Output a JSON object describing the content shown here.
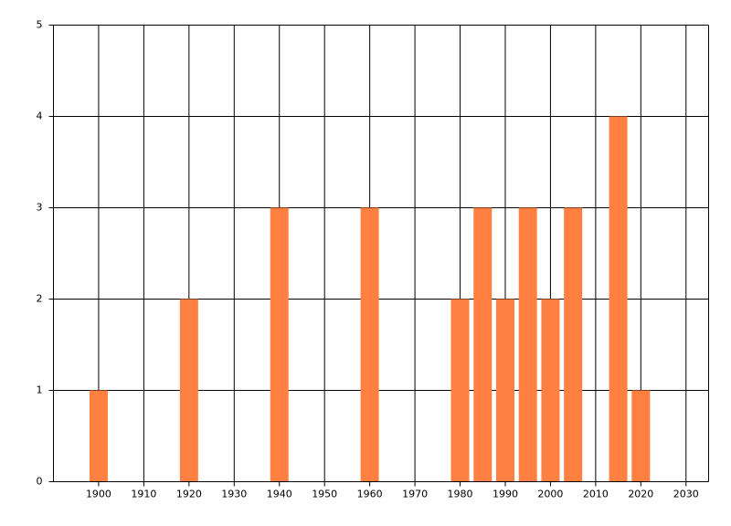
{
  "chart_data": {
    "type": "bar",
    "x": [
      1900,
      1920,
      1940,
      1960,
      1980,
      1985,
      1990,
      1995,
      2000,
      2005,
      2015,
      2020
    ],
    "values": [
      1,
      2,
      3,
      3,
      2,
      3,
      2,
      3,
      2,
      3,
      4,
      1
    ],
    "color": "#ff8040",
    "xlim": [
      1890,
      2035
    ],
    "xticks": [
      1900,
      1910,
      1920,
      1930,
      1940,
      1950,
      1960,
      1970,
      1980,
      1990,
      2000,
      2010,
      2020,
      2030
    ],
    "ylim": [
      0,
      5
    ],
    "yticks": [
      0,
      1,
      2,
      3,
      4,
      5
    ],
    "grid": true
  }
}
